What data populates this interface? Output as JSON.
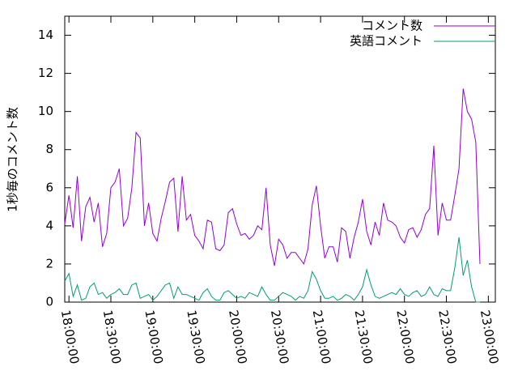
{
  "chart_data": {
    "type": "line",
    "ylabel": "1秒毎のコメント数",
    "x": [
      "17:57:00",
      "18:00:00",
      "18:03:00",
      "18:06:00",
      "18:09:00",
      "18:12:00",
      "18:15:00",
      "18:18:00",
      "18:21:00",
      "18:24:00",
      "18:27:00",
      "18:30:00",
      "18:33:00",
      "18:36:00",
      "18:39:00",
      "18:42:00",
      "18:45:00",
      "18:48:00",
      "18:51:00",
      "18:54:00",
      "18:57:00",
      "19:00:00",
      "19:03:00",
      "19:06:00",
      "19:09:00",
      "19:12:00",
      "19:15:00",
      "19:18:00",
      "19:21:00",
      "19:24:00",
      "19:27:00",
      "19:30:00",
      "19:33:00",
      "19:36:00",
      "19:39:00",
      "19:42:00",
      "19:45:00",
      "19:48:00",
      "19:51:00",
      "19:54:00",
      "19:57:00",
      "20:00:00",
      "20:03:00",
      "20:06:00",
      "20:09:00",
      "20:12:00",
      "20:15:00",
      "20:18:00",
      "20:21:00",
      "20:24:00",
      "20:27:00",
      "20:30:00",
      "20:33:00",
      "20:36:00",
      "20:39:00",
      "20:42:00",
      "20:45:00",
      "20:48:00",
      "20:51:00",
      "20:54:00",
      "20:57:00",
      "21:00:00",
      "21:03:00",
      "21:06:00",
      "21:09:00",
      "21:12:00",
      "21:15:00",
      "21:18:00",
      "21:21:00",
      "21:24:00",
      "21:27:00",
      "21:30:00",
      "21:33:00",
      "21:36:00",
      "21:39:00",
      "21:42:00",
      "21:45:00",
      "21:48:00",
      "21:51:00",
      "21:54:00",
      "21:57:00",
      "22:00:00",
      "22:03:00",
      "22:06:00",
      "22:09:00",
      "22:12:00",
      "22:15:00",
      "22:18:00",
      "22:21:00",
      "22:24:00",
      "22:27:00",
      "22:30:00",
      "22:33:00",
      "22:36:00",
      "22:39:00",
      "22:42:00",
      "22:45:00",
      "22:48:00",
      "22:51:00",
      "22:54:00"
    ],
    "series": [
      {
        "name": "コメント数",
        "color": "#9400d3",
        "values": [
          4.1,
          5.6,
          3.9,
          6.6,
          3.2,
          5.0,
          5.5,
          4.2,
          5.2,
          2.9,
          3.6,
          6.0,
          6.3,
          7.0,
          4.0,
          4.4,
          6.0,
          8.9,
          8.6,
          4.0,
          5.2,
          3.6,
          3.2,
          4.4,
          5.3,
          6.3,
          6.5,
          3.7,
          6.6,
          4.3,
          4.6,
          3.5,
          3.2,
          2.8,
          4.3,
          4.2,
          2.8,
          2.7,
          3.0,
          4.7,
          4.9,
          4.1,
          3.5,
          3.6,
          3.3,
          3.5,
          4.0,
          3.8,
          6.0,
          3.0,
          1.9,
          3.3,
          3.0,
          2.3,
          2.6,
          2.6,
          2.3,
          2.0,
          2.8,
          5.1,
          6.1,
          4.0,
          2.3,
          2.9,
          2.9,
          2.1,
          3.9,
          3.7,
          2.3,
          3.4,
          4.2,
          5.4,
          3.7,
          3.0,
          4.2,
          3.5,
          5.2,
          4.3,
          4.2,
          4.0,
          3.4,
          3.1,
          3.8,
          3.9,
          3.4,
          3.8,
          4.6,
          4.9,
          8.2,
          3.5,
          5.2,
          4.3,
          4.3,
          5.6,
          7.0,
          11.2,
          10.0,
          9.6,
          8.4,
          2.0
        ]
      },
      {
        "name": "英語コメント",
        "color": "#009e73",
        "values": [
          1.1,
          1.5,
          0.3,
          0.9,
          0.1,
          0.2,
          0.8,
          1.0,
          0.4,
          0.5,
          0.2,
          0.4,
          0.5,
          0.7,
          0.4,
          0.4,
          0.9,
          1.0,
          0.2,
          0.3,
          0.4,
          0.1,
          0.3,
          0.6,
          0.9,
          1.0,
          0.2,
          0.8,
          0.4,
          0.4,
          0.3,
          0.2,
          0.1,
          0.5,
          0.7,
          0.3,
          0.1,
          0.1,
          0.5,
          0.6,
          0.4,
          0.2,
          0.3,
          0.2,
          0.5,
          0.4,
          0.3,
          0.8,
          0.4,
          0.1,
          0.1,
          0.3,
          0.5,
          0.4,
          0.3,
          0.1,
          0.3,
          0.2,
          0.6,
          1.6,
          1.2,
          0.6,
          0.2,
          0.2,
          0.3,
          0.1,
          0.2,
          0.4,
          0.3,
          0.1,
          0.4,
          0.8,
          1.7,
          0.9,
          0.3,
          0.2,
          0.3,
          0.4,
          0.5,
          0.4,
          0.7,
          0.4,
          0.3,
          0.5,
          0.6,
          0.3,
          0.4,
          0.8,
          0.4,
          0.3,
          0.7,
          0.6,
          0.6,
          1.8,
          3.4,
          1.4,
          2.2,
          0.8,
          0.0,
          0.0
        ]
      }
    ],
    "xlim": [
      "17:57:00",
      "23:05:00"
    ],
    "xticks": [
      "18:00:00",
      "18:30:00",
      "19:00:00",
      "19:30:00",
      "20:00:00",
      "20:30:00",
      "21:00:00",
      "21:30:00",
      "22:00:00",
      "22:30:00",
      "23:00:00"
    ],
    "ylim": [
      0,
      15
    ],
    "yticks": [
      0,
      2,
      4,
      6,
      8,
      10,
      12,
      14
    ],
    "legend": "top-right"
  }
}
